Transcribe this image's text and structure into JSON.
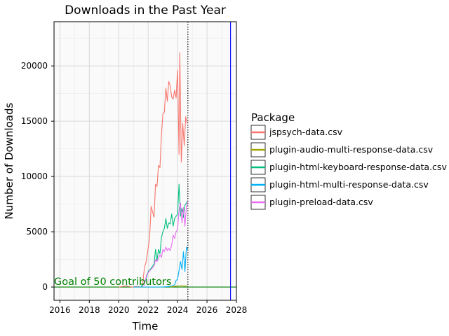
{
  "chart_data": {
    "type": "line",
    "title": "Downloads in the Past Year",
    "xlabel": "Time",
    "ylabel": "Number of Downloads",
    "xlim": [
      2015.6,
      2028.0
    ],
    "ylim": [
      -1200,
      24000
    ],
    "x_ticks": [
      2016,
      2018,
      2020,
      2022,
      2024,
      2026,
      2028
    ],
    "y_ticks": [
      0,
      5000,
      10000,
      15000,
      20000
    ],
    "grid": true,
    "legend": {
      "title": "Package",
      "placement": "right"
    },
    "reference_lines": [
      {
        "orientation": "horizontal",
        "y": 0,
        "color": "#008000",
        "style": "solid"
      },
      {
        "orientation": "vertical",
        "x": 2024.7,
        "color": "#000000",
        "style": "dotted"
      },
      {
        "orientation": "vertical",
        "x": 2027.6,
        "color": "#0000ff",
        "style": "solid"
      }
    ],
    "annotations": [
      {
        "text": "Goal of 50 contributors",
        "x": 2015.6,
        "y": 0,
        "color": "#008000"
      }
    ],
    "series": [
      {
        "name": "jspsych-data.csv",
        "color": "#F8766D",
        "x": [
          2020.0,
          2020.5,
          2020.9,
          2021.2,
          2021.6,
          2021.75,
          2021.85,
          2022.0,
          2022.1,
          2022.2,
          2022.3,
          2022.4,
          2022.5,
          2022.6,
          2022.7,
          2022.8,
          2022.9,
          2023.0,
          2023.1,
          2023.2,
          2023.3,
          2023.4,
          2023.5,
          2023.6,
          2023.7,
          2023.8,
          2023.9,
          2024.0,
          2024.1,
          2024.15,
          2024.25,
          2024.35,
          2024.45,
          2024.55,
          2024.65
        ],
        "y": [
          0,
          100,
          0,
          50,
          0,
          1800,
          2200,
          3500,
          4500,
          7300,
          6800,
          6300,
          9300,
          9100,
          11000,
          10800,
          13800,
          15700,
          15800,
          18000,
          16800,
          18600,
          18200,
          17200,
          17000,
          17800,
          17100,
          19600,
          12000,
          21200,
          11300,
          14800,
          12800,
          15400,
          14800
        ]
      },
      {
        "name": "plugin-audio-multi-response-data.csv",
        "color": "#A3A500",
        "x": [
          2023.5,
          2023.7,
          2023.9,
          2024.1,
          2024.3,
          2024.5,
          2024.65
        ],
        "y": [
          0,
          50,
          80,
          100,
          120,
          80,
          100
        ]
      },
      {
        "name": "plugin-html-keyboard-response-data.csv",
        "color": "#00BF7D",
        "x": [
          2021.5,
          2021.8,
          2022.0,
          2022.2,
          2022.4,
          2022.5,
          2022.6,
          2022.7,
          2022.8,
          2022.9,
          2023.0,
          2023.1,
          2023.2,
          2023.3,
          2023.4,
          2023.5,
          2023.6,
          2023.7,
          2023.8,
          2023.9,
          2024.0,
          2024.1,
          2024.2,
          2024.3,
          2024.4,
          2024.5,
          2024.65
        ],
        "y": [
          0,
          500,
          1400,
          1700,
          2100,
          3400,
          2400,
          3400,
          3000,
          4500,
          5000,
          5300,
          6200,
          5300,
          5800,
          5700,
          6600,
          5500,
          6200,
          6400,
          6600,
          9300,
          6400,
          7100,
          6300,
          7400,
          7700
        ]
      },
      {
        "name": "plugin-html-multi-response-data.csv",
        "color": "#00B0F6",
        "x": [
          2021.0,
          2022.0,
          2023.0,
          2023.4,
          2023.6,
          2023.8,
          2023.9,
          2024.0,
          2024.1,
          2024.2,
          2024.3,
          2024.4,
          2024.5,
          2024.6,
          2024.7
        ],
        "y": [
          0,
          0,
          0,
          50,
          100,
          200,
          600,
          700,
          1500,
          2300,
          1600,
          3200,
          1400,
          3600,
          3400
        ]
      },
      {
        "name": "plugin-preload-data.csv",
        "color": "#E76BF3",
        "x": [
          2021.7,
          2021.9,
          2022.1,
          2022.2,
          2022.4,
          2022.5,
          2022.6,
          2022.7,
          2022.8,
          2022.9,
          2023.0,
          2023.1,
          2023.2,
          2023.3,
          2023.4,
          2023.5,
          2023.6,
          2023.7,
          2023.8,
          2023.9,
          2024.0,
          2024.1,
          2024.2,
          2024.3,
          2024.4,
          2024.5,
          2024.6,
          2024.7
        ],
        "y": [
          100,
          1100,
          1500,
          1600,
          1900,
          2500,
          2300,
          2600,
          2900,
          2700,
          3400,
          3200,
          3600,
          3300,
          3500,
          3300,
          3800,
          4700,
          4400,
          5000,
          5200,
          7000,
          7600,
          5800,
          7200,
          5500,
          7300,
          7700
        ]
      }
    ]
  }
}
